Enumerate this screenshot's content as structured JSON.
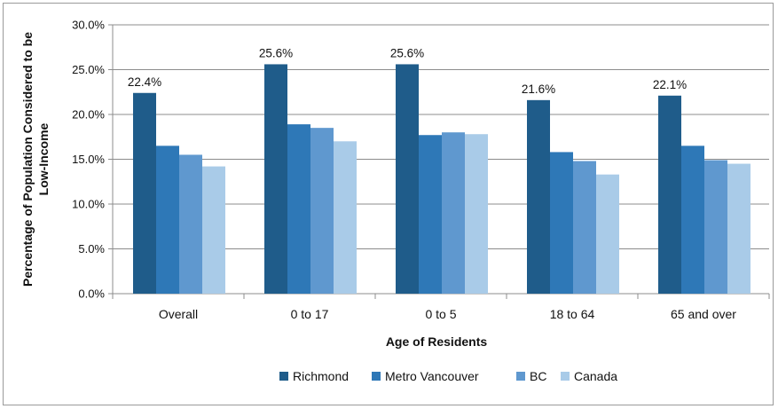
{
  "chart_data": {
    "type": "bar",
    "title": "",
    "xlabel": "Age of Residents",
    "ylabel_lines": [
      "Percentage of Population Considered to be",
      "Low-Income"
    ],
    "ylim": [
      0,
      30
    ],
    "y_ticks": [
      0,
      5,
      10,
      15,
      20,
      25,
      30
    ],
    "y_tick_labels": [
      "0.0%",
      "5.0%",
      "10.0%",
      "15.0%",
      "20.0%",
      "25.0%",
      "30.0%"
    ],
    "categories": [
      "Overall",
      "0 to 17",
      "0 to 5",
      "18 to 64",
      "65 and over"
    ],
    "series": [
      {
        "name": "Richmond",
        "color": "#1f5c8a",
        "values": [
          22.4,
          25.6,
          25.6,
          21.6,
          22.1
        ]
      },
      {
        "name": "Metro Vancouver",
        "color": "#2e78b7",
        "values": [
          16.5,
          18.9,
          17.7,
          15.8,
          16.5
        ]
      },
      {
        "name": "BC",
        "color": "#5f98cf",
        "values": [
          15.5,
          18.5,
          18.0,
          14.8,
          14.9
        ]
      },
      {
        "name": "Canada",
        "color": "#a9cbe8",
        "values": [
          14.2,
          17.0,
          17.8,
          13.3,
          14.5
        ]
      }
    ],
    "data_labels": [
      {
        "category_index": 0,
        "text": "22.4%"
      },
      {
        "category_index": 1,
        "text": "25.6%"
      },
      {
        "category_index": 2,
        "text": "25.6%"
      },
      {
        "category_index": 3,
        "text": "21.6%"
      },
      {
        "category_index": 4,
        "text": "22.1%"
      }
    ],
    "grid": true,
    "legend_position": "bottom"
  }
}
